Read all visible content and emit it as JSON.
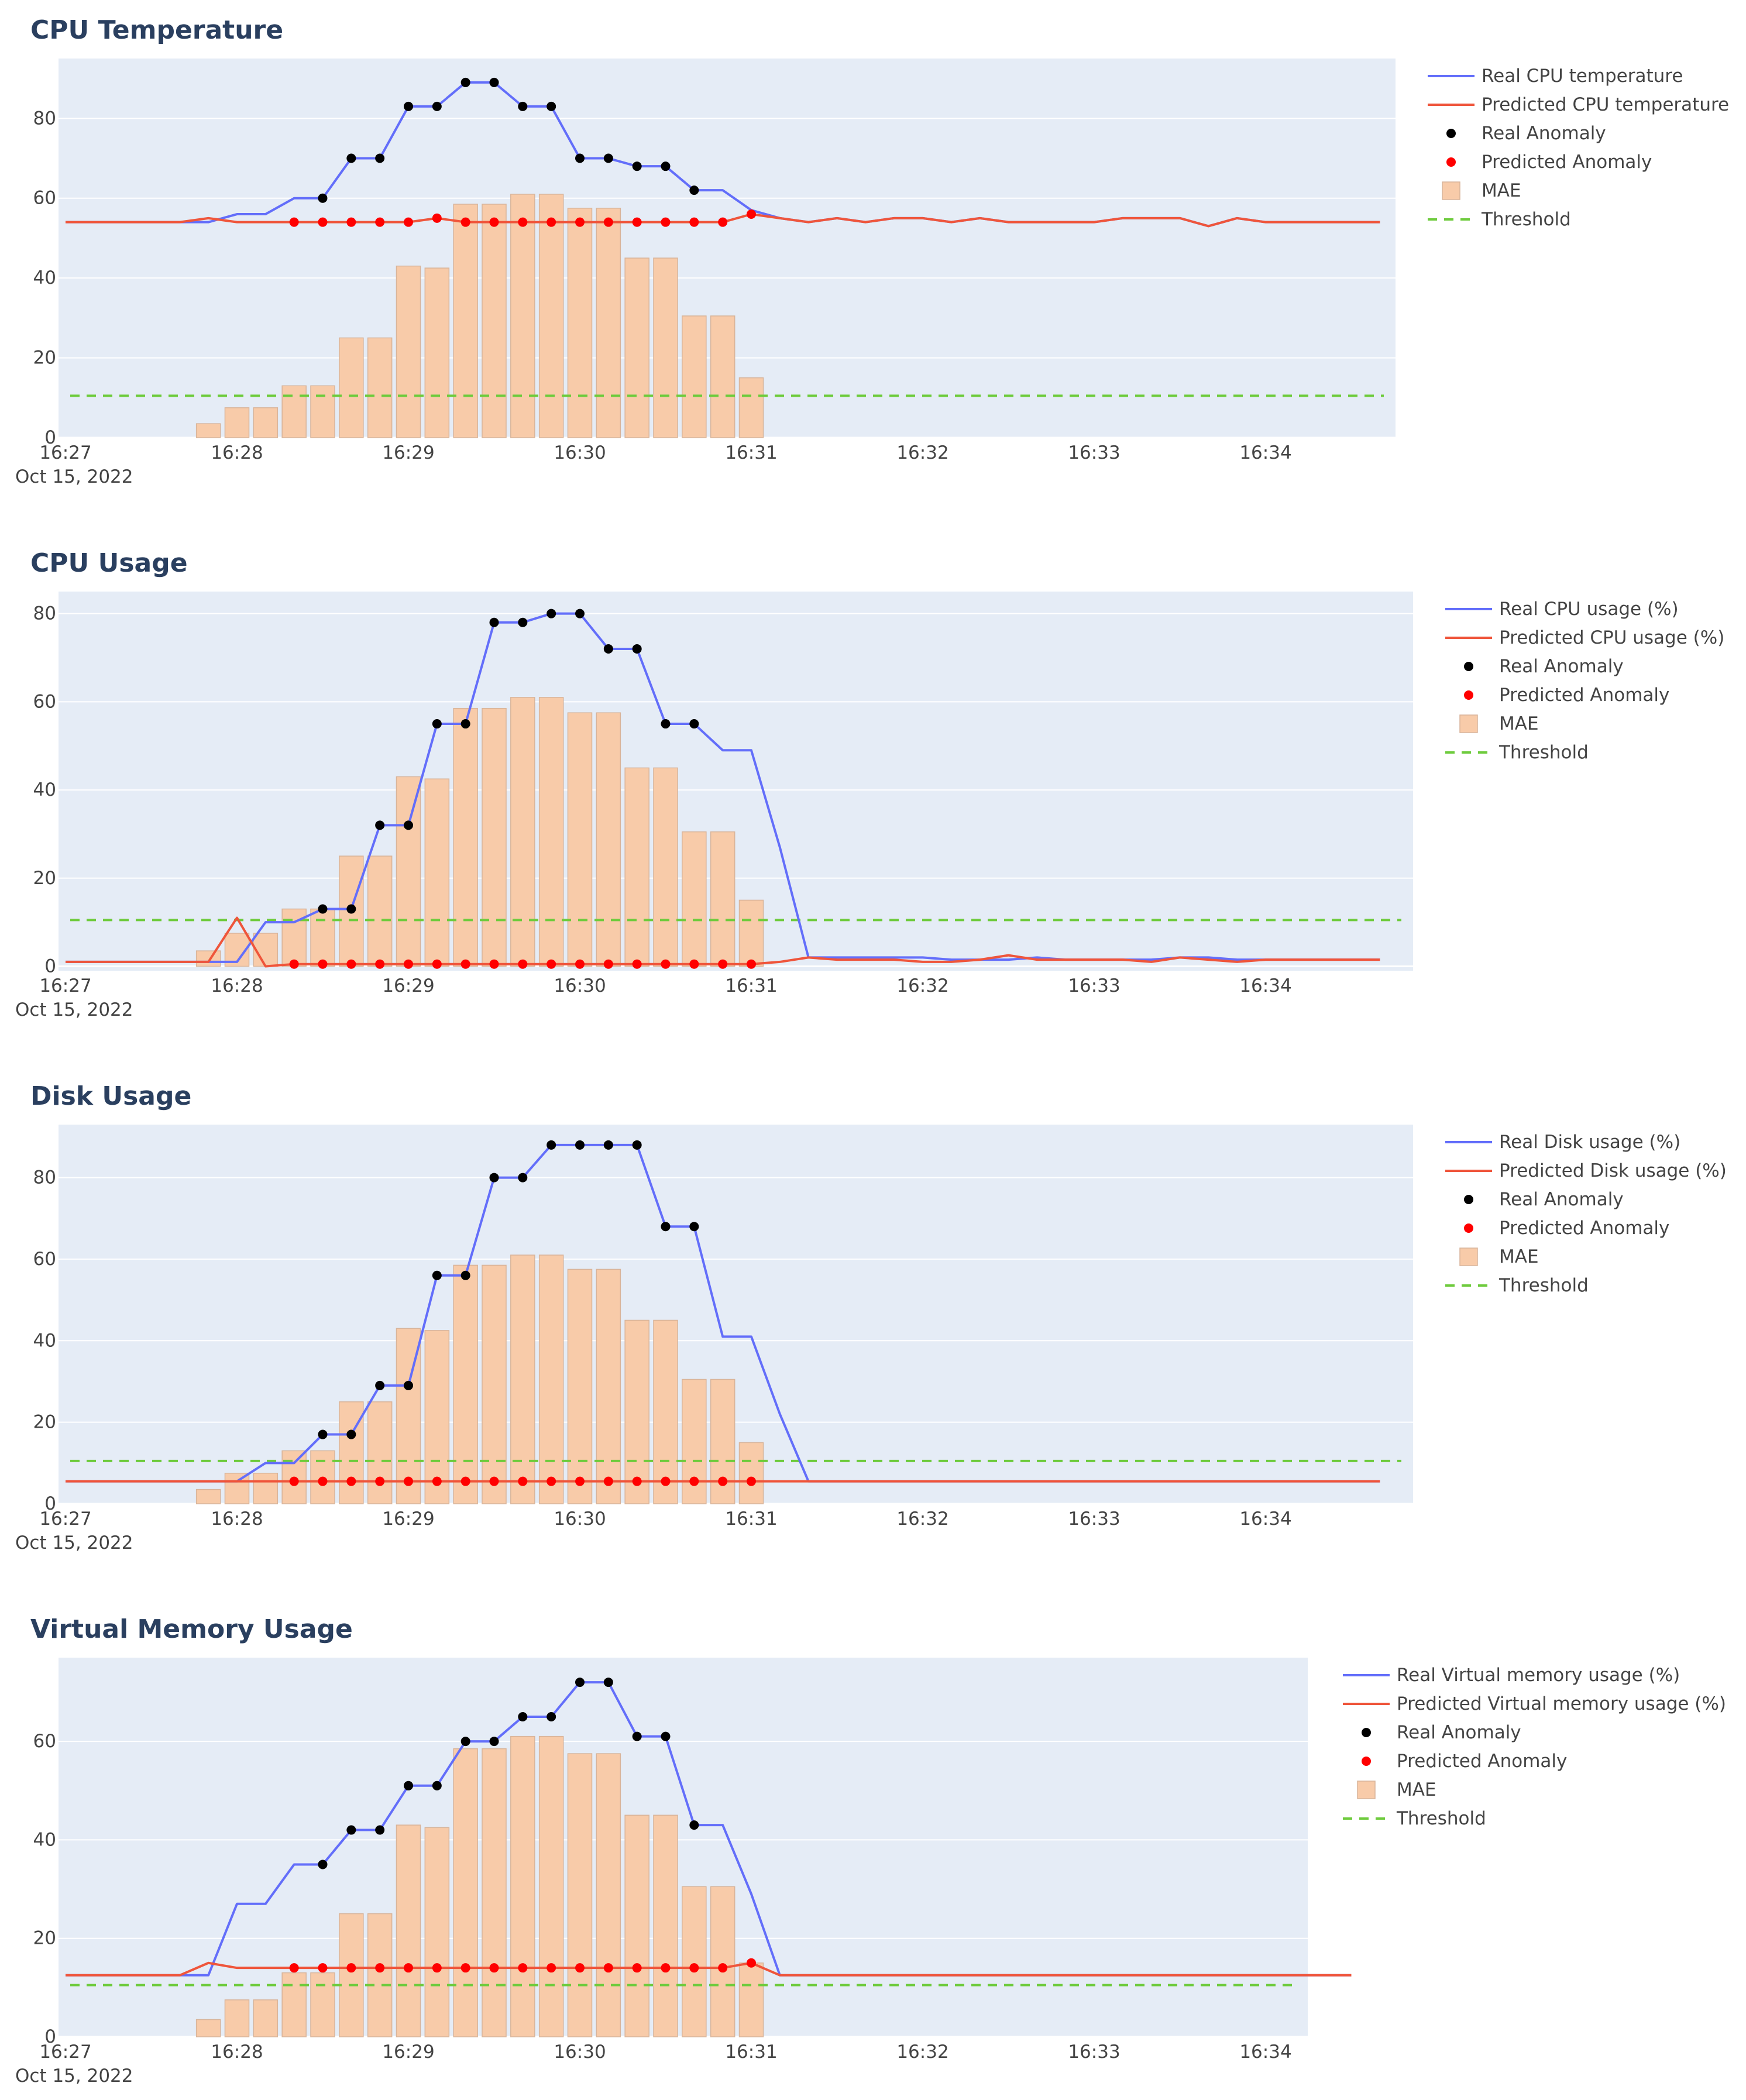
{
  "date_label": "Oct 15, 2022",
  "x_ticks": [
    "16:27",
    "16:28",
    "16:29",
    "16:30",
    "16:31",
    "16:32",
    "16:33",
    "16:34"
  ],
  "colors": {
    "plot_bg": "#e5ecf6",
    "grid": "#ffffff",
    "real_line": "#636efa",
    "pred_line": "#ef553b",
    "real_anomaly": "#000000",
    "pred_anomaly": "#ff0000",
    "mae_fill": "#f8cba9",
    "threshold": "#6ecb3d"
  },
  "chart_data": [
    {
      "type": "line",
      "title": "CPU Temperature",
      "ylim": [
        0,
        95
      ],
      "y_ticks": [
        0,
        20,
        40,
        60,
        80
      ],
      "legend_position": "right",
      "legend": [
        "Real CPU temperature",
        "Predicted CPU temperature",
        "Real Anomaly",
        "Predicted Anomaly",
        "MAE",
        "Threshold"
      ],
      "x_start": "16:27:00",
      "x_step_seconds": 10,
      "real": [
        54,
        54,
        54,
        54,
        54,
        54,
        56,
        56,
        60,
        60,
        70,
        70,
        83,
        83,
        89,
        89,
        83,
        83,
        70,
        70,
        68,
        68,
        62,
        62,
        57,
        55,
        54,
        55,
        54,
        55,
        55,
        54,
        55,
        54,
        54,
        54,
        54,
        55,
        55,
        55,
        53,
        55,
        54,
        54,
        54,
        54,
        54
      ],
      "predicted": [
        54,
        54,
        54,
        54,
        54,
        55,
        54,
        54,
        54,
        54,
        54,
        54,
        54,
        55,
        54,
        54,
        54,
        54,
        54,
        54,
        54,
        54,
        54,
        54,
        56,
        55,
        54,
        55,
        54,
        55,
        55,
        54,
        55,
        54,
        54,
        54,
        54,
        55,
        55,
        55,
        53,
        55,
        54,
        54,
        54,
        54,
        54
      ],
      "real_anomaly_idx": [
        9,
        10,
        11,
        12,
        13,
        14,
        15,
        16,
        17,
        18,
        19,
        20,
        21,
        22
      ],
      "predicted_anomaly_idx": [
        8,
        9,
        10,
        11,
        12,
        13,
        14,
        15,
        16,
        17,
        18,
        19,
        20,
        21,
        22,
        23,
        24
      ],
      "mae": [
        0,
        0,
        0,
        0,
        0,
        3.5,
        7.5,
        7.5,
        13,
        13,
        25,
        25,
        43,
        42.5,
        58.5,
        58.5,
        61,
        61,
        57.5,
        57.5,
        45,
        45,
        30.5,
        30.5,
        15
      ],
      "threshold": 10.5
    },
    {
      "type": "line",
      "title": "CPU Usage",
      "ylim": [
        -1,
        85
      ],
      "y_ticks": [
        0,
        20,
        40,
        60,
        80
      ],
      "legend_position": "right",
      "legend": [
        "Real CPU usage (%)",
        "Predicted CPU usage (%)",
        "Real Anomaly",
        "Predicted Anomaly",
        "MAE",
        "Threshold"
      ],
      "x_start": "16:27:00",
      "x_step_seconds": 10,
      "real": [
        1,
        1,
        1,
        1,
        1,
        1,
        1,
        10,
        10,
        13,
        13,
        32,
        32,
        55,
        55,
        78,
        78,
        80,
        80,
        72,
        72,
        55,
        55,
        49,
        49,
        27,
        2,
        2,
        2,
        2,
        2,
        1.5,
        1.5,
        1.5,
        2,
        1.5,
        1.5,
        1.5,
        1.5,
        2,
        2,
        1.5,
        1.5,
        1.5,
        1.5,
        1.5,
        1.5
      ],
      "predicted": [
        1,
        1,
        1,
        1,
        1,
        1,
        11,
        0,
        0.5,
        0.5,
        0.5,
        0.5,
        0.5,
        0.5,
        0.5,
        0.5,
        0.5,
        0.5,
        0.5,
        0.5,
        0.5,
        0.5,
        0.5,
        0.5,
        0.5,
        1,
        2,
        1.5,
        1.5,
        1.5,
        1,
        1,
        1.5,
        2.5,
        1.5,
        1.5,
        1.5,
        1.5,
        1,
        2,
        1.5,
        1,
        1.5,
        1.5,
        1.5,
        1.5,
        1.5
      ],
      "real_anomaly_idx": [
        9,
        10,
        11,
        12,
        13,
        14,
        15,
        16,
        17,
        18,
        19,
        20,
        21,
        22
      ],
      "predicted_anomaly_idx": [
        8,
        9,
        10,
        11,
        12,
        13,
        14,
        15,
        16,
        17,
        18,
        19,
        20,
        21,
        22,
        23,
        24
      ],
      "mae": [
        0,
        0,
        0,
        0,
        0,
        3.5,
        7.5,
        7.5,
        13,
        13,
        25,
        25,
        43,
        42.5,
        58.5,
        58.5,
        61,
        61,
        57.5,
        57.5,
        45,
        45,
        30.5,
        30.5,
        15
      ],
      "threshold": 10.5
    },
    {
      "type": "line",
      "title": "Disk Usage",
      "ylim": [
        0,
        93
      ],
      "y_ticks": [
        0,
        20,
        40,
        60,
        80
      ],
      "legend_position": "right",
      "legend": [
        "Real Disk usage (%)",
        "Predicted Disk usage (%)",
        "Real Anomaly",
        "Predicted Anomaly",
        "MAE",
        "Threshold"
      ],
      "x_start": "16:27:00",
      "x_step_seconds": 10,
      "real": [
        5.5,
        5.5,
        5.5,
        5.5,
        5.5,
        5.5,
        5.5,
        10,
        10,
        17,
        17,
        29,
        29,
        56,
        56,
        80,
        80,
        88,
        88,
        88,
        88,
        68,
        68,
        41,
        41,
        22,
        5.5,
        5.5,
        5.5,
        5.5,
        5.5,
        5.5,
        5.5,
        5.5,
        5.5,
        5.5,
        5.5,
        5.5,
        5.5,
        5.5,
        5.5,
        5.5,
        5.5,
        5.5,
        5.5,
        5.5,
        5.5
      ],
      "predicted": [
        5.5,
        5.5,
        5.5,
        5.5,
        5.5,
        5.5,
        5.5,
        5.5,
        5.5,
        5.5,
        5.5,
        5.5,
        5.5,
        5.5,
        5.5,
        5.5,
        5.5,
        5.5,
        5.5,
        5.5,
        5.5,
        5.5,
        5.5,
        5.5,
        5.5,
        5.5,
        5.5,
        5.5,
        5.5,
        5.5,
        5.5,
        5.5,
        5.5,
        5.5,
        5.5,
        5.5,
        5.5,
        5.5,
        5.5,
        5.5,
        5.5,
        5.5,
        5.5,
        5.5,
        5.5,
        5.5,
        5.5
      ],
      "real_anomaly_idx": [
        9,
        10,
        11,
        12,
        13,
        14,
        15,
        16,
        17,
        18,
        19,
        20,
        21,
        22
      ],
      "predicted_anomaly_idx": [
        8,
        9,
        10,
        11,
        12,
        13,
        14,
        15,
        16,
        17,
        18,
        19,
        20,
        21,
        22,
        23,
        24
      ],
      "mae": [
        0,
        0,
        0,
        0,
        0,
        3.5,
        7.5,
        7.5,
        13,
        13,
        25,
        25,
        43,
        42.5,
        58.5,
        58.5,
        61,
        61,
        57.5,
        57.5,
        45,
        45,
        30.5,
        30.5,
        15
      ],
      "threshold": 10.5
    },
    {
      "type": "line",
      "title": "Virtual Memory Usage",
      "ylim": [
        0,
        77
      ],
      "y_ticks": [
        0,
        20,
        40,
        60
      ],
      "legend_position": "right",
      "legend": [
        "Real Virtual memory usage (%)",
        "Predicted Virtual memory usage (%)",
        "Real Anomaly",
        "Predicted Anomaly",
        "MAE",
        "Threshold"
      ],
      "x_start": "16:27:00",
      "x_step_seconds": 10,
      "real": [
        12.5,
        12.5,
        12.5,
        12.5,
        12.5,
        12.5,
        27,
        27,
        35,
        35,
        42,
        42,
        51,
        51,
        60,
        60,
        65,
        65,
        72,
        72,
        61,
        61,
        43,
        43,
        29,
        12.5,
        12.5,
        12.5,
        12.5,
        12.5,
        12.5,
        12.5,
        12.5,
        12.5,
        12.5,
        12.5,
        12.5,
        12.5,
        12.5,
        12.5,
        12.5,
        12.5,
        12.5,
        12.5,
        12.5,
        12.5
      ],
      "predicted": [
        12.5,
        12.5,
        12.5,
        12.5,
        12.5,
        15,
        14,
        14,
        14,
        14,
        14,
        14,
        14,
        14,
        14,
        14,
        14,
        14,
        14,
        14,
        14,
        14,
        14,
        14,
        15,
        12.5,
        12.5,
        12.5,
        12.5,
        12.5,
        12.5,
        12.5,
        12.5,
        12.5,
        12.5,
        12.5,
        12.5,
        12.5,
        12.5,
        12.5,
        12.5,
        12.5,
        12.5,
        12.5,
        12.5,
        12.5
      ],
      "real_anomaly_idx": [
        9,
        10,
        11,
        12,
        13,
        14,
        15,
        16,
        17,
        18,
        19,
        20,
        21,
        22
      ],
      "predicted_anomaly_idx": [
        8,
        9,
        10,
        11,
        12,
        13,
        14,
        15,
        16,
        17,
        18,
        19,
        20,
        21,
        22,
        23,
        24
      ],
      "mae": [
        0,
        0,
        0,
        0,
        0,
        3.5,
        7.5,
        7.5,
        13,
        13,
        25,
        25,
        43,
        42.5,
        58.5,
        58.5,
        61,
        61,
        57.5,
        57.5,
        45,
        45,
        30.5,
        30.5,
        15
      ],
      "threshold": 10.5
    }
  ]
}
